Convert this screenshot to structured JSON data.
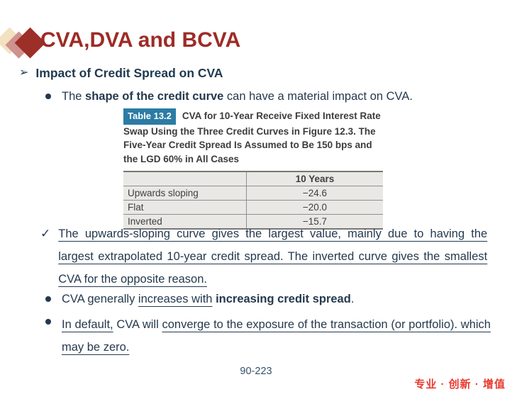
{
  "slide": {
    "title": "CVA,DVA and BCVA",
    "page_number": "90-223",
    "slogan": "专业 · 创新 · 增值"
  },
  "colors": {
    "title_red": "#9e2b26",
    "body_navy": "#25394e",
    "chip_blue": "#2b7ca4",
    "slogan_red": "#e8392e",
    "logo_cream": "#f2e2c2",
    "logo_rose": "#d0928e",
    "logo_dark_red": "#9c2f28"
  },
  "glyphs": {
    "arrow_bullet": "➢",
    "disc_bullet": "●",
    "check_bullet": "✓"
  },
  "heading": {
    "label": "Impact of Credit Spread on CVA"
  },
  "bullet_shape": {
    "pre": "The ",
    "bold": "shape of the credit curve",
    "post": " can have a material impact on CVA."
  },
  "figure": {
    "chip": "Table 13.2",
    "caption": "CVA for 10-Year Receive Fixed Interest Rate Swap Using the Three Credit Curves in Figure 12.3. The Five-Year Credit Spread Is Assumed to Be 150 bps and the LGD 60% in All Cases"
  },
  "table": {
    "col_header": "10 Years",
    "rows": [
      {
        "label": "Upwards sloping",
        "value": "−24.6"
      },
      {
        "label": "Flat",
        "value": "−20.0"
      },
      {
        "label": "Inverted",
        "value": "−15.7"
      }
    ]
  },
  "note_check": {
    "text": "The upwards-sloping curve gives the largest value, mainly due to having the largest extrapolated 10-year credit spread. The inverted curve gives the smallest CVA for the opposite reason."
  },
  "bullet_increase": {
    "pre": "CVA generally ",
    "underlined": "increases with",
    "sep": " ",
    "bold": "increasing credit spread",
    "post": "."
  },
  "bullet_default": {
    "u1": "In default,",
    "mid": " CVA will ",
    "u2": "converge to the exposure of the transaction (or portfolio). which may be zero."
  }
}
